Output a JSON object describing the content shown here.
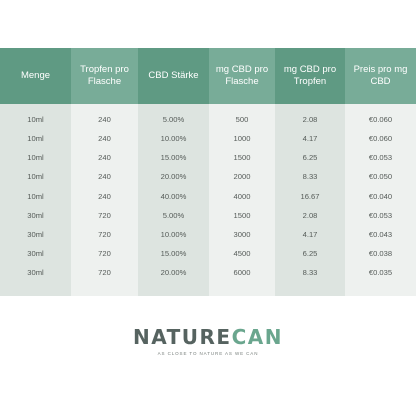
{
  "colors": {
    "header_dark": "#5f9a83",
    "header_light": "#78ac98",
    "body_dark": "#dde4e0",
    "body_light": "#eef1ef",
    "logo_gray": "#566360",
    "logo_green": "#6aa68e"
  },
  "table": {
    "headers": [
      "Menge",
      "Tropfen pro Flasche",
      "CBD Stärke",
      "mg CBD pro Flasche",
      "mg CBD pro Tropfen",
      "Preis pro mg CBD"
    ],
    "rows": [
      [
        "10ml",
        "240",
        "5.00%",
        "500",
        "2.08",
        "€0.060"
      ],
      [
        "10ml",
        "240",
        "10.00%",
        "1000",
        "4.17",
        "€0.060"
      ],
      [
        "10ml",
        "240",
        "15.00%",
        "1500",
        "6.25",
        "€0.053"
      ],
      [
        "10ml",
        "240",
        "20.00%",
        "2000",
        "8.33",
        "€0.050"
      ],
      [
        "10ml",
        "240",
        "40.00%",
        "4000",
        "16.67",
        "€0.040"
      ],
      [
        "30ml",
        "720",
        "5.00%",
        "1500",
        "2.08",
        "€0.053"
      ],
      [
        "30ml",
        "720",
        "10.00%",
        "3000",
        "4.17",
        "€0.043"
      ],
      [
        "30ml",
        "720",
        "15.00%",
        "4500",
        "6.25",
        "€0.038"
      ],
      [
        "30ml",
        "720",
        "20.00%",
        "6000",
        "8.33",
        "€0.035"
      ]
    ]
  },
  "logo": {
    "part1": "NATURE",
    "part2": "CAN",
    "tagline": "AS CLOSE TO NATURE AS WE CAN"
  }
}
